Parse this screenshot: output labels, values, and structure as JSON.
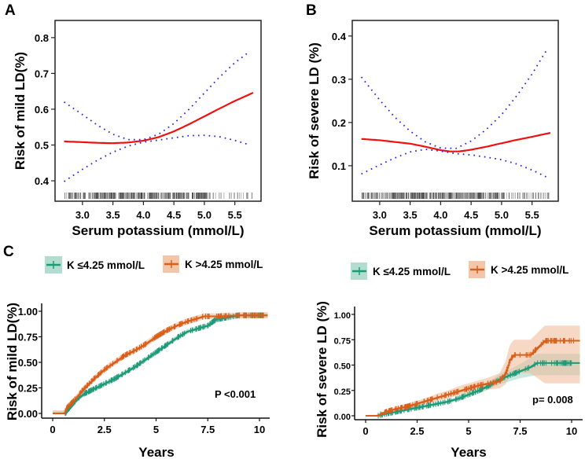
{
  "figure": {
    "panels": [
      "A",
      "B",
      "C",
      ""
    ]
  },
  "colors": {
    "fit_line": "#ee1111",
    "ci_dots": "#1a1aee",
    "rug": "#333333",
    "group_low": "#1e9a77",
    "group_low_band": "#9fd6c4",
    "group_high": "#d95f1a",
    "group_high_band": "#f0b895"
  },
  "chart_data": [
    {
      "id": "A",
      "type": "line",
      "title": "",
      "xlabel": "Serum potassium (mmol/L)",
      "ylabel": "Risk of mild LD(%)",
      "xlim": [
        2.55,
        5.93
      ],
      "ylim": [
        0.343,
        0.848
      ],
      "xticks": [
        "3.0",
        "3.5",
        "4.0",
        "4.5",
        "5.0",
        "5.5"
      ],
      "xtick_values": [
        3.0,
        3.5,
        4.0,
        4.5,
        5.0,
        5.5
      ],
      "yticks": [
        "0.4",
        "0.5",
        "0.6",
        "0.7",
        "0.8"
      ],
      "ytick_values": [
        0.4,
        0.5,
        0.6,
        0.7,
        0.8
      ],
      "grid": false,
      "rug": true,
      "series": [
        {
          "name": "fit",
          "style": "solid",
          "x": [
            2.7,
            3.0,
            3.25,
            3.5,
            3.75,
            4.0,
            4.25,
            4.5,
            4.75,
            5.0,
            5.25,
            5.5,
            5.8
          ],
          "y": [
            0.51,
            0.508,
            0.506,
            0.505,
            0.507,
            0.512,
            0.522,
            0.538,
            0.558,
            0.58,
            0.602,
            0.623,
            0.646
          ]
        },
        {
          "name": "upper CI",
          "style": "dotted",
          "x": [
            2.7,
            3.0,
            3.25,
            3.5,
            3.75,
            4.0,
            4.25,
            4.5,
            4.75,
            5.0,
            5.25,
            5.5,
            5.75
          ],
          "y": [
            0.62,
            0.585,
            0.555,
            0.53,
            0.515,
            0.515,
            0.53,
            0.56,
            0.6,
            0.645,
            0.69,
            0.73,
            0.762
          ]
        },
        {
          "name": "lower CI",
          "style": "dotted",
          "x": [
            2.7,
            3.0,
            3.25,
            3.5,
            3.75,
            4.0,
            4.25,
            4.5,
            4.75,
            5.0,
            5.25,
            5.5,
            5.75
          ],
          "y": [
            0.398,
            0.432,
            0.458,
            0.48,
            0.497,
            0.508,
            0.514,
            0.52,
            0.526,
            0.527,
            0.523,
            0.513,
            0.5
          ]
        }
      ]
    },
    {
      "id": "B",
      "type": "line",
      "title": "",
      "xlabel": "Serum potassium (mmol/L)",
      "ylabel": "Risk of severe LD (%)",
      "xlim": [
        2.55,
        5.93
      ],
      "ylim": [
        0.018,
        0.436
      ],
      "xticks": [
        "3.0",
        "3.5",
        "4.0",
        "4.5",
        "5.0",
        "5.5"
      ],
      "xtick_values": [
        3.0,
        3.5,
        4.0,
        4.5,
        5.0,
        5.5
      ],
      "yticks": [
        "0.1",
        "0.2",
        "0.3",
        "0.4"
      ],
      "ytick_values": [
        0.1,
        0.2,
        0.3,
        0.4
      ],
      "grid": false,
      "rug": true,
      "series": [
        {
          "name": "fit",
          "style": "solid",
          "x": [
            2.7,
            3.0,
            3.25,
            3.5,
            3.75,
            4.0,
            4.15,
            4.3,
            4.5,
            4.75,
            5.0,
            5.25,
            5.5,
            5.8
          ],
          "y": [
            0.162,
            0.159,
            0.155,
            0.151,
            0.144,
            0.136,
            0.133,
            0.133,
            0.137,
            0.144,
            0.152,
            0.16,
            0.167,
            0.176
          ]
        },
        {
          "name": "upper CI",
          "style": "dotted",
          "x": [
            2.7,
            3.0,
            3.25,
            3.5,
            3.75,
            4.0,
            4.25,
            4.5,
            4.75,
            5.0,
            5.25,
            5.5,
            5.75
          ],
          "y": [
            0.305,
            0.252,
            0.212,
            0.18,
            0.155,
            0.141,
            0.14,
            0.157,
            0.184,
            0.218,
            0.262,
            0.312,
            0.37
          ]
        },
        {
          "name": "lower CI",
          "style": "dotted",
          "x": [
            2.7,
            3.0,
            3.25,
            3.5,
            3.75,
            4.0,
            4.25,
            4.5,
            4.75,
            5.0,
            5.25,
            5.5,
            5.75
          ],
          "y": [
            0.081,
            0.102,
            0.118,
            0.132,
            0.138,
            0.134,
            0.128,
            0.125,
            0.12,
            0.114,
            0.104,
            0.09,
            0.073
          ]
        }
      ]
    },
    {
      "id": "C",
      "type": "line",
      "subtype": "kaplan-meier cumulative incidence",
      "title": "",
      "xlabel": "Years",
      "ylabel": "Risk of mild LD(%)",
      "xlim": [
        0,
        10.4
      ],
      "ylim": [
        0,
        1.0
      ],
      "xticks": [
        "0",
        "2.5",
        "5",
        "7.5",
        "10"
      ],
      "xtick_values": [
        0,
        2.5,
        5,
        7.5,
        10
      ],
      "yticks": [
        "0.00",
        "0.25",
        "0.50",
        "0.75",
        "1.00"
      ],
      "ytick_values": [
        0,
        0.25,
        0.5,
        0.75,
        1.0
      ],
      "grid": false,
      "legend": {
        "position": "top",
        "entries": [
          "K ≤4.25 mmol/L",
          "K >4.25 mmol/L"
        ]
      },
      "annotation": "P <0.001",
      "series": [
        {
          "name": "K ≤4.25 mmol/L",
          "color_key": "group_low",
          "x": [
            0,
            0.6,
            0.8,
            1.0,
            1.25,
            1.5,
            2.0,
            2.5,
            3.0,
            3.5,
            4.0,
            4.5,
            5.0,
            5.5,
            6.0,
            6.5,
            7.0,
            7.5,
            7.9,
            8.5,
            9.0,
            9.5,
            10.4
          ],
          "y": [
            0,
            0,
            0.05,
            0.1,
            0.15,
            0.19,
            0.24,
            0.29,
            0.34,
            0.4,
            0.46,
            0.53,
            0.6,
            0.67,
            0.74,
            0.8,
            0.83,
            0.86,
            0.92,
            0.94,
            0.96,
            0.96,
            0.96
          ],
          "band": 0.025
        },
        {
          "name": "K >4.25 mmol/L",
          "color_key": "group_high",
          "x": [
            0,
            0.55,
            0.7,
            1.0,
            1.25,
            1.5,
            2.0,
            2.5,
            3.0,
            3.5,
            4.0,
            4.5,
            5.0,
            5.5,
            6.0,
            6.5,
            7.0,
            7.3,
            8.0,
            9.0,
            10.4
          ],
          "y": [
            0,
            0,
            0.06,
            0.12,
            0.18,
            0.24,
            0.34,
            0.43,
            0.5,
            0.57,
            0.62,
            0.68,
            0.75,
            0.81,
            0.86,
            0.9,
            0.93,
            0.95,
            0.95,
            0.96,
            0.96
          ],
          "band": 0.03
        }
      ]
    },
    {
      "id": "D",
      "type": "line",
      "subtype": "kaplan-meier cumulative incidence",
      "title": "",
      "xlabel": "Years",
      "ylabel": "Risk of severe LD (%)",
      "xlim": [
        0,
        10.4
      ],
      "ylim": [
        0,
        1.0
      ],
      "xticks": [
        "0",
        "2.5",
        "5",
        "7.5",
        "10"
      ],
      "xtick_values": [
        0,
        2.5,
        5,
        7.5,
        10
      ],
      "yticks": [
        "0.00",
        "0.25",
        "0.50",
        "0.75",
        "1.00"
      ],
      "ytick_values": [
        0,
        0.25,
        0.5,
        0.75,
        1.0
      ],
      "grid": false,
      "legend": {
        "position": "top",
        "entries": [
          "K ≤4.25 mmol/L",
          "K >4.25 mmol/L"
        ]
      },
      "annotation": "p= 0.008",
      "series": [
        {
          "name": "K ≤4.25 mmol/L",
          "color_key": "group_low",
          "x": [
            0,
            0.6,
            1.0,
            1.5,
            2.0,
            2.5,
            3.0,
            3.5,
            4.0,
            4.5,
            5.0,
            5.5,
            6.0,
            6.5,
            7.0,
            7.5,
            8.0,
            8.3,
            9.0,
            10.4
          ],
          "y": [
            0,
            0,
            0.02,
            0.04,
            0.06,
            0.08,
            0.1,
            0.12,
            0.14,
            0.17,
            0.21,
            0.25,
            0.3,
            0.36,
            0.4,
            0.44,
            0.48,
            0.52,
            0.52,
            0.52
          ],
          "band_lower": [
            0,
            0,
            0.01,
            0.03,
            0.04,
            0.06,
            0.08,
            0.1,
            0.12,
            0.15,
            0.18,
            0.22,
            0.26,
            0.31,
            0.34,
            0.37,
            0.39,
            0.4,
            0.4,
            0.4
          ],
          "band_upper": [
            0,
            0,
            0.03,
            0.05,
            0.07,
            0.1,
            0.12,
            0.14,
            0.16,
            0.19,
            0.24,
            0.28,
            0.34,
            0.41,
            0.46,
            0.51,
            0.57,
            0.61,
            0.61,
            0.61
          ]
        },
        {
          "name": "K >4.25 mmol/L",
          "color_key": "group_high",
          "x": [
            0,
            0.55,
            1.0,
            1.5,
            2.0,
            2.5,
            3.0,
            3.5,
            4.0,
            4.5,
            5.0,
            5.5,
            6.0,
            6.5,
            6.8,
            7.0,
            7.2,
            8.0,
            8.7,
            9.5,
            10.4
          ],
          "y": [
            0,
            0,
            0.04,
            0.07,
            0.09,
            0.12,
            0.15,
            0.18,
            0.21,
            0.24,
            0.27,
            0.3,
            0.32,
            0.34,
            0.42,
            0.55,
            0.6,
            0.6,
            0.74,
            0.74,
            0.74
          ],
          "band_lower": [
            0,
            0,
            0.02,
            0.05,
            0.07,
            0.09,
            0.12,
            0.15,
            0.17,
            0.2,
            0.22,
            0.24,
            0.26,
            0.27,
            0.31,
            0.4,
            0.42,
            0.42,
            0.32,
            0.32,
            0.32
          ],
          "band_upper": [
            0,
            0,
            0.06,
            0.09,
            0.12,
            0.15,
            0.18,
            0.22,
            0.25,
            0.29,
            0.32,
            0.35,
            0.38,
            0.42,
            0.54,
            0.7,
            0.75,
            0.75,
            0.89,
            0.89,
            0.89
          ]
        }
      ]
    }
  ]
}
